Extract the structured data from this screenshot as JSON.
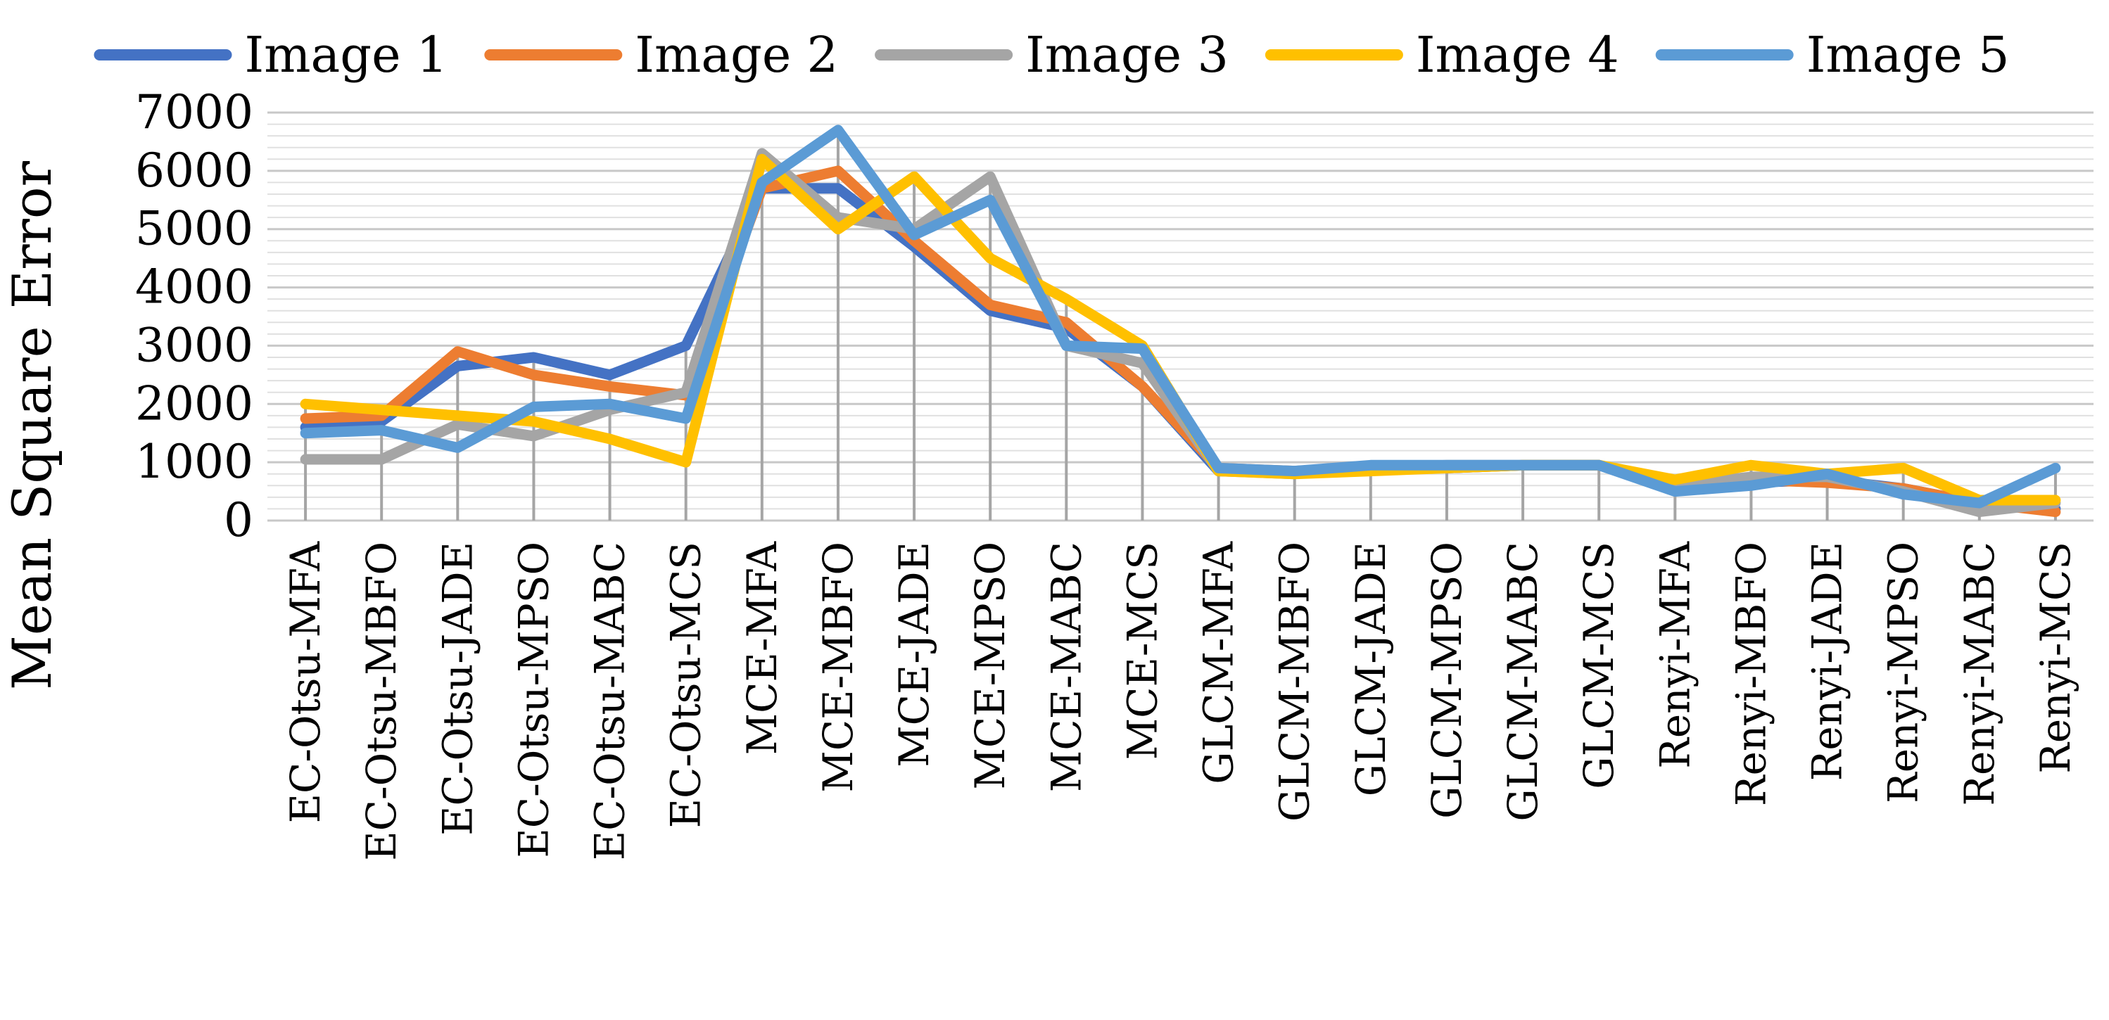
{
  "chart_data": {
    "type": "line",
    "title": "",
    "xlabel": "",
    "ylabel": "Mean Square Error",
    "ylim": [
      0,
      7000
    ],
    "yticks": [
      0,
      1000,
      2000,
      3000,
      4000,
      5000,
      6000,
      7000
    ],
    "grid": true,
    "drop_lines": true,
    "legend_position": "top",
    "categories": [
      "EC-Otsu-MFA",
      "EC-Otsu-MBFO",
      "EC-Otsu-JADE",
      "EC-Otsu-MPSO",
      "EC-Otsu-MABC",
      "EC-Otsu-MCS",
      "MCE-MFA",
      "MCE-MBFO",
      "MCE-JADE",
      "MCE-MPSO",
      "MCE-MABC",
      "MCE-MCS",
      "GLCM-MFA",
      "GLCM-MBFO",
      "GLCM-JADE",
      "GLCM-MPSO",
      "GLCM-MABC",
      "GLCM-MCS",
      "Renyi-MFA",
      "Renyi-MBFO",
      "Renyi-JADE",
      "Renyi-MPSO",
      "Renyi-MABC",
      "Renyi-MCS"
    ],
    "series": [
      {
        "name": "Image 1",
        "color": "#4472C4",
        "values": [
          1600,
          1700,
          2650,
          2800,
          2500,
          3000,
          5700,
          5700,
          4700,
          3600,
          3300,
          2300,
          850,
          850,
          900,
          900,
          950,
          950,
          600,
          650,
          700,
          550,
          300,
          200
        ]
      },
      {
        "name": "Image 2",
        "color": "#ED7D31",
        "values": [
          1750,
          1800,
          2900,
          2500,
          2300,
          2150,
          5700,
          6000,
          4800,
          3700,
          3400,
          2300,
          900,
          850,
          900,
          900,
          950,
          950,
          650,
          700,
          650,
          550,
          300,
          150
        ]
      },
      {
        "name": "Image 3",
        "color": "#A5A5A5",
        "values": [
          1050,
          1050,
          1650,
          1450,
          1900,
          2200,
          6300,
          5200,
          5000,
          5900,
          3000,
          2700,
          850,
          800,
          900,
          950,
          950,
          950,
          600,
          750,
          750,
          500,
          150,
          300
        ]
      },
      {
        "name": "Image 4",
        "color": "#FFC000",
        "values": [
          2000,
          1900,
          1800,
          1700,
          1400,
          1000,
          6200,
          5000,
          5900,
          4500,
          3800,
          3000,
          850,
          800,
          850,
          900,
          950,
          950,
          700,
          950,
          800,
          900,
          350,
          350
        ]
      },
      {
        "name": "Image 5",
        "color": "#5B9BD5",
        "values": [
          1500,
          1550,
          1250,
          1950,
          2000,
          1750,
          5800,
          6700,
          4900,
          5500,
          3000,
          2950,
          900,
          850,
          950,
          950,
          950,
          950,
          500,
          600,
          800,
          450,
          300,
          900
        ]
      }
    ]
  }
}
